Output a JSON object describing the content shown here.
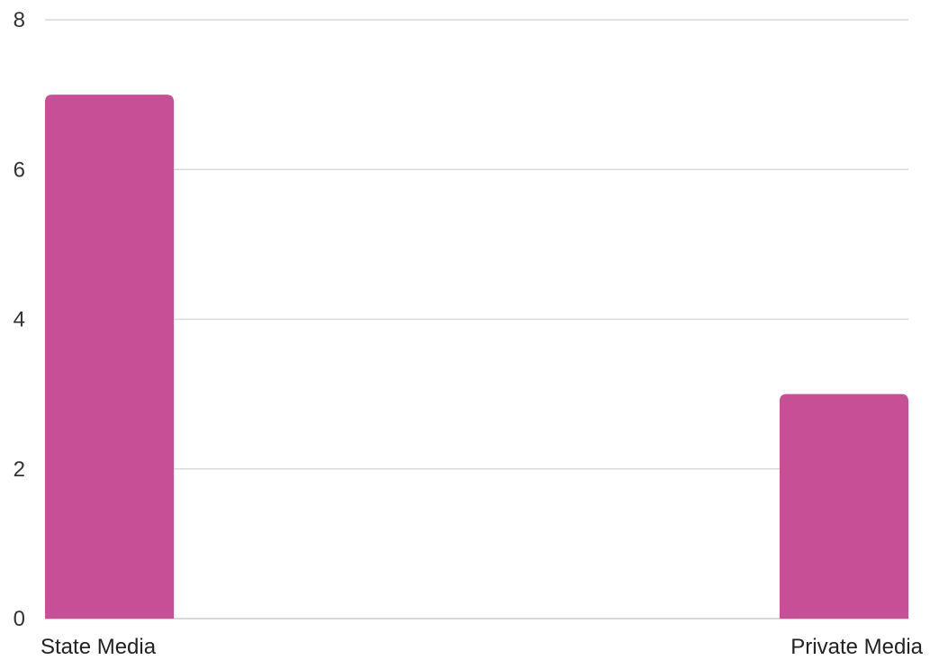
{
  "chart_data": {
    "type": "bar",
    "categories": [
      "State Media",
      "Private Media"
    ],
    "values": [
      7,
      3
    ],
    "title": "",
    "xlabel": "",
    "ylabel": "",
    "ylim": [
      0,
      8
    ],
    "yticks": [
      0,
      2,
      4,
      6,
      8
    ],
    "grid": true,
    "legend": "none",
    "bar_color": "#c64f96"
  }
}
